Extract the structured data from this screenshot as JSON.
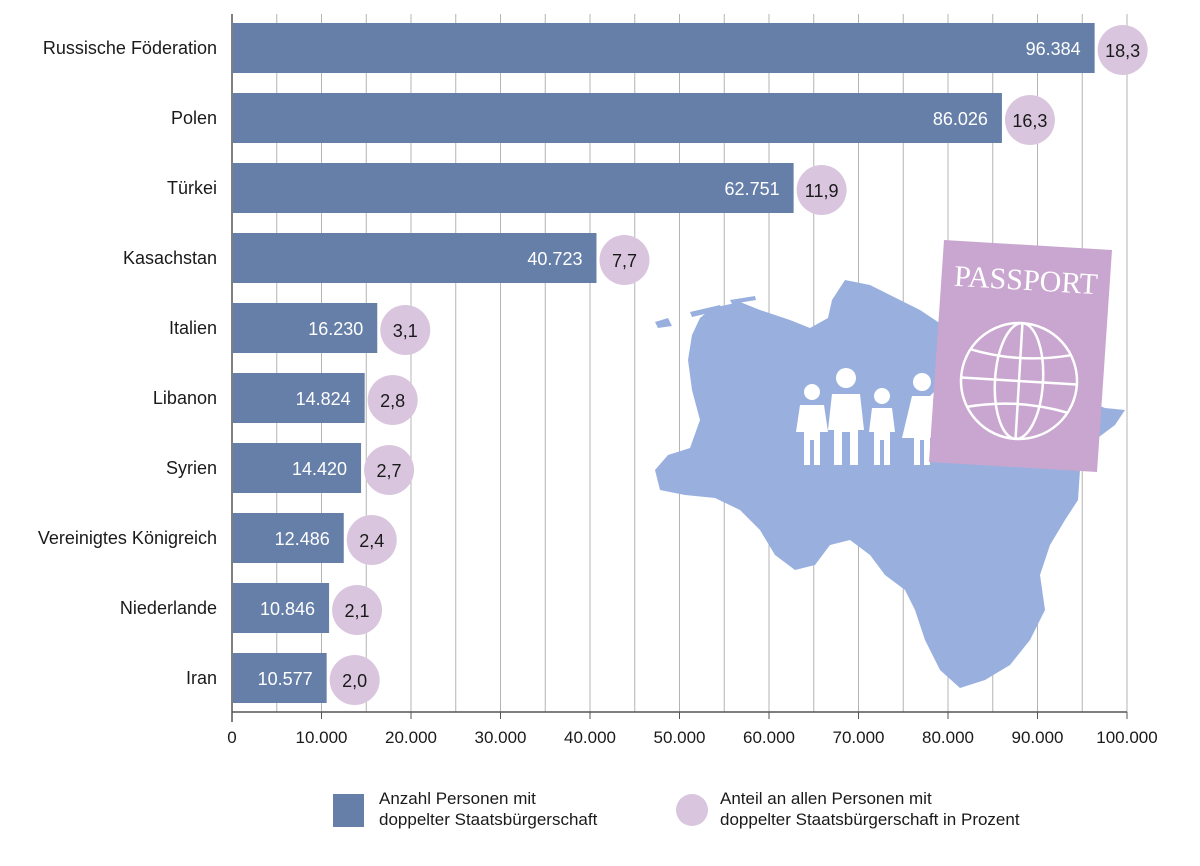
{
  "chart_data": {
    "type": "bar",
    "orientation": "horizontal",
    "categories": [
      "Russische Föderation",
      "Polen",
      "Türkei",
      "Kasachstan",
      "Italien",
      "Libanon",
      "Syrien",
      "Vereinigtes Königreich",
      "Niederlande",
      "Iran"
    ],
    "series": [
      {
        "name": "Anzahl Personen mit doppelter Staatsbürgerschaft",
        "values": [
          96384,
          86026,
          62751,
          40723,
          16230,
          14824,
          14420,
          12486,
          10846,
          10577
        ],
        "labels": [
          "96.384",
          "86.026",
          "62.751",
          "40.723",
          "16.230",
          "14.824",
          "14.420",
          "12.486",
          "10.846",
          "10.577"
        ],
        "color": "#667fa8"
      },
      {
        "name": "Anteil an allen Personen mit doppelter Staatsbürgerschaft in Prozent",
        "values": [
          18.3,
          16.3,
          11.9,
          7.7,
          3.1,
          2.8,
          2.7,
          2.4,
          2.1,
          2.0
        ],
        "labels": [
          "18,3",
          "16,3",
          "11,9",
          "7,7",
          "3,1",
          "2,8",
          "2,7",
          "2,4",
          "2,1",
          "2,0"
        ],
        "color": "#d9c6de"
      }
    ],
    "xlim": [
      0,
      100000
    ],
    "xticks": [
      0,
      10000,
      20000,
      30000,
      40000,
      50000,
      60000,
      70000,
      80000,
      90000,
      100000
    ],
    "xtick_labels": [
      "0",
      "10.000",
      "20.000",
      "30.000",
      "40.000",
      "50.000",
      "60.000",
      "70.000",
      "80.000",
      "90.000",
      "100.000"
    ],
    "grid": true,
    "legend_position": "bottom"
  },
  "legend": {
    "bar_line1": "Anzahl Personen mit",
    "bar_line2": "doppelter Staatsbürgerschaft",
    "dot_line1": "Anteil an allen Personen mit",
    "dot_line2": "doppelter Staatsbürgerschaft in Prozent"
  },
  "illustration": {
    "passport_text": "PASSPORT",
    "icons": [
      "lower-saxony-map",
      "family-icon",
      "passport-icon",
      "globe-icon"
    ],
    "map_color": "#99b0df",
    "passport_color": "#c9a6cf"
  }
}
